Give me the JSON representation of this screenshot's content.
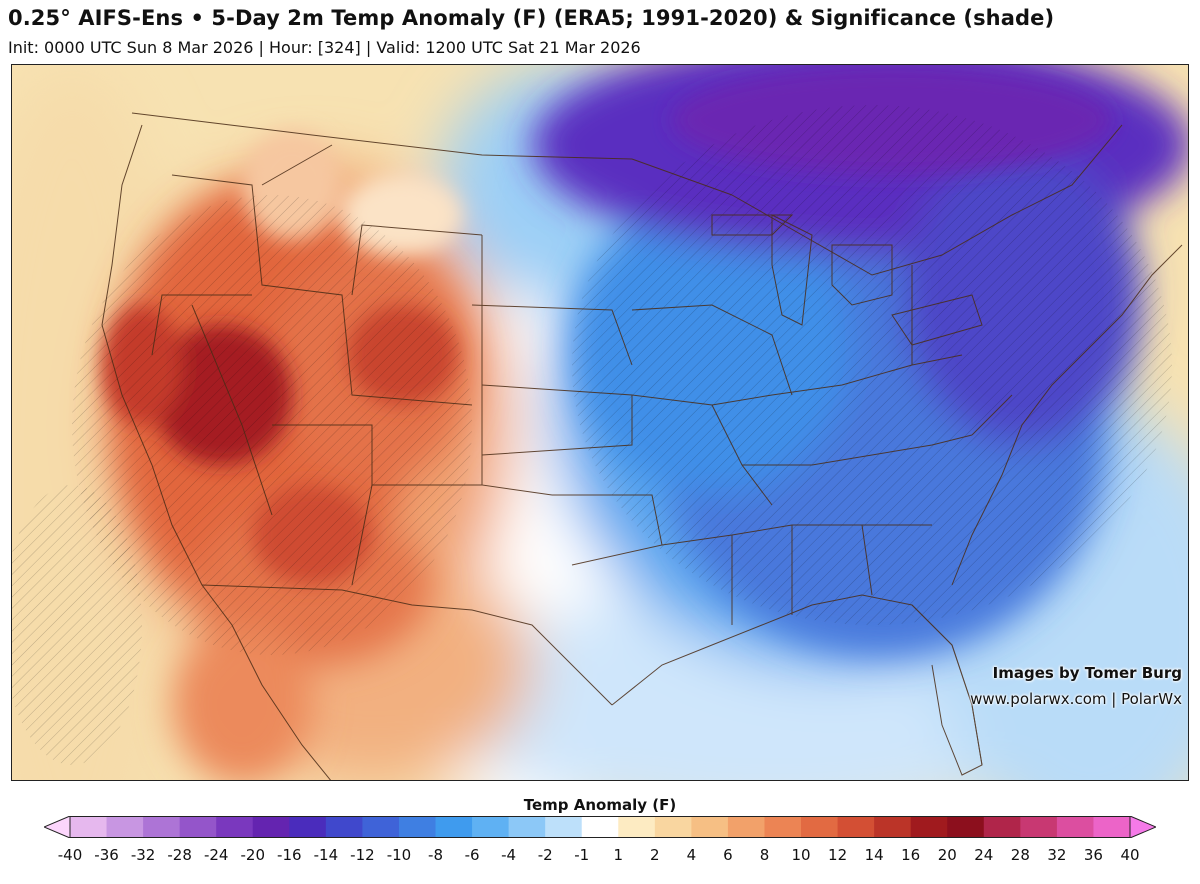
{
  "header": {
    "title": "0.25° AIFS-Ens • 5-Day 2m Temp Anomaly (F) (ERA5; 1991-2020) & Significance (shade)",
    "subtitle": "Init: 0000 UTC Sun 8 Mar 2026 | Hour: [324] | Valid: 1200 UTC Sat 21 Mar 2026"
  },
  "credits": {
    "line1": "Images by Tomer Burg",
    "line2": "www.polarwx.com | PolarWx"
  },
  "legend": {
    "title": "Temp Anomaly (F)",
    "ticks": [
      "-40",
      "-36",
      "-32",
      "-28",
      "-24",
      "-20",
      "-16",
      "-14",
      "-12",
      "-10",
      "-8",
      "-6",
      "-4",
      "-2",
      "-1",
      "1",
      "2",
      "4",
      "6",
      "8",
      "10",
      "12",
      "14",
      "16",
      "20",
      "24",
      "28",
      "32",
      "36",
      "40"
    ],
    "colors": [
      "#fcd6fc",
      "#e6b8ee",
      "#c896e2",
      "#ad74d6",
      "#9455ca",
      "#7a38be",
      "#6424b0",
      "#4a2cbc",
      "#4048cc",
      "#3f63d8",
      "#3f7fe2",
      "#3f9bee",
      "#5fb1f3",
      "#8cc8f7",
      "#bde0fa",
      "#ffffff",
      "#fdebc2",
      "#f9d6a0",
      "#f6bf84",
      "#f2a16a",
      "#ec8454",
      "#e26a42",
      "#d34f34",
      "#bb3428",
      "#a01a1e",
      "#8c0f1d",
      "#b0254a",
      "#c83872",
      "#dc4ea0",
      "#ec64c8",
      "#f57ae8"
    ]
  },
  "map": {
    "region": "Contiguous United States, southern Canada and northern Mexico",
    "colors": {
      "ocean_pacific": "#f6deaa",
      "west_warm": "#e96f4a",
      "west_core": "#a41a1e",
      "plains_neutral": "#ffffff",
      "east_cold": "#3f70dc",
      "northeast_core": "#6424b0",
      "gulf_light": "#bde0fa",
      "borders": "#4a2c16"
    }
  }
}
